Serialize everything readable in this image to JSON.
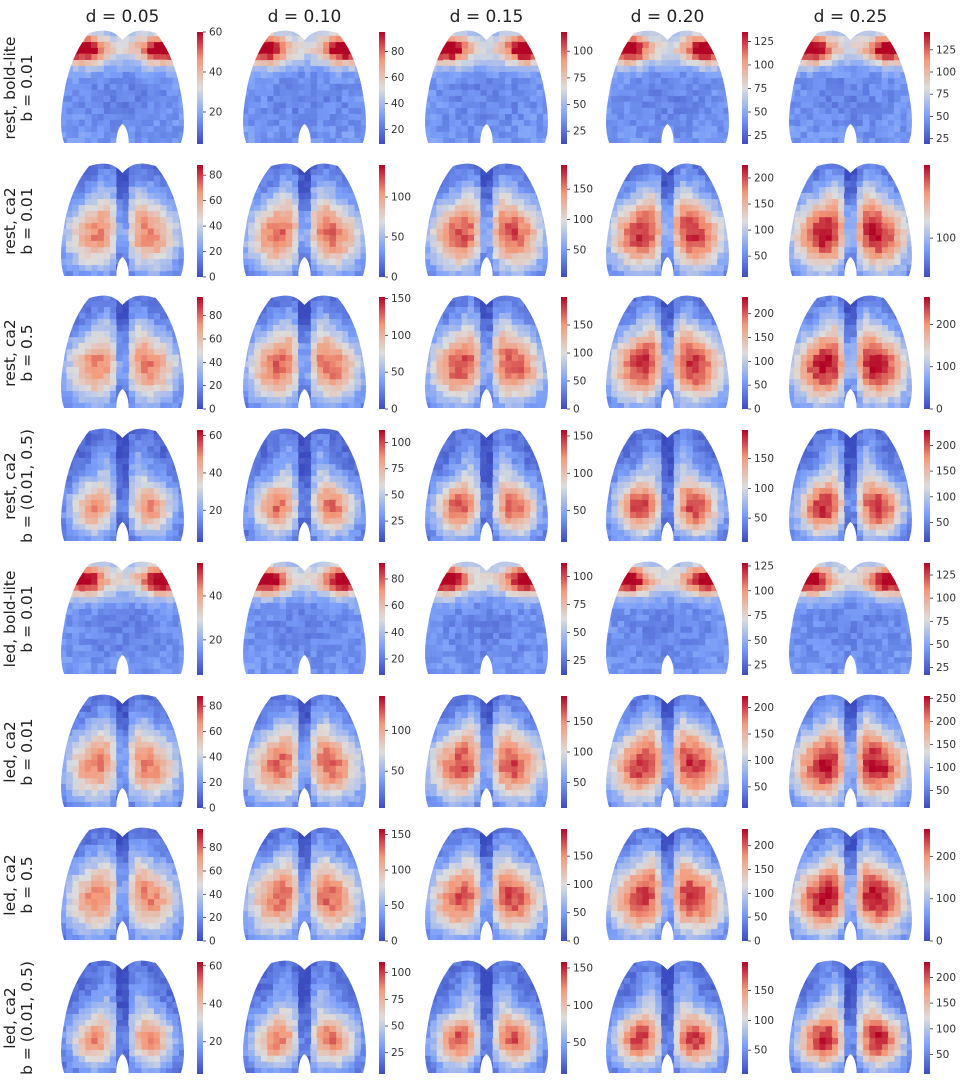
{
  "chart_data": {
    "type": "heatmap",
    "layout": "grid of brain-map heatmaps with individual colorbars",
    "colormap": "coolwarm",
    "column_titles": [
      "d = 0.05",
      "d = 0.10",
      "d = 0.15",
      "d = 0.20",
      "d = 0.25"
    ],
    "rows": [
      {
        "label_line1": "rest, bold-lite",
        "label_line2": "b = 0.01",
        "pattern": "bold",
        "panels": [
          {
            "ticks": [
              "20",
              "40",
              "60"
            ],
            "range": [
              4,
              60
            ]
          },
          {
            "ticks": [
              "20",
              "40",
              "60",
              "80"
            ],
            "range": [
              9,
              95
            ]
          },
          {
            "ticks": [
              "25",
              "50",
              "75",
              "100"
            ],
            "range": [
              13,
              118
            ]
          },
          {
            "ticks": [
              "25",
              "50",
              "75",
              "100",
              "125"
            ],
            "range": [
              16,
              135
            ]
          },
          {
            "ticks": [
              "25",
              "50",
              "75",
              "100",
              "125"
            ],
            "range": [
              19,
              145
            ]
          }
        ]
      },
      {
        "label_line1": "rest, ca2",
        "label_line2": "b = 0.01",
        "pattern": "ca2",
        "panels": [
          {
            "ticks": [
              "0",
              "20",
              "40",
              "60",
              "80"
            ],
            "range": [
              0,
              88
            ]
          },
          {
            "ticks": [
              "0",
              "50",
              "100"
            ],
            "range": [
              0,
              140
            ]
          },
          {
            "ticks": [
              "50",
              "100",
              "150"
            ],
            "range": [
              5,
              190
            ]
          },
          {
            "ticks": [
              "50",
              "100",
              "150",
              "200"
            ],
            "range": [
              10,
              225
            ]
          },
          {
            "ticks": [
              "100"
            ],
            "range": [
              15,
              260
            ]
          }
        ]
      },
      {
        "label_line1": "rest, ca2",
        "label_line2": "b = 0.5",
        "pattern": "ca2",
        "panels": [
          {
            "ticks": [
              "0",
              "20",
              "40",
              "60",
              "80"
            ],
            "range": [
              0,
              96
            ]
          },
          {
            "ticks": [
              "0",
              "50",
              "100",
              "150"
            ],
            "range": [
              0,
              152
            ]
          },
          {
            "ticks": [
              "0",
              "50",
              "100",
              "150"
            ],
            "range": [
              0,
              200
            ]
          },
          {
            "ticks": [
              "0",
              "50",
              "100",
              "150",
              "200"
            ],
            "range": [
              0,
              235
            ]
          },
          {
            "ticks": [
              "0",
              "100",
              "200"
            ],
            "range": [
              0,
              265
            ]
          }
        ]
      },
      {
        "label_line1": "rest, ca2",
        "label_line2": "b = (0.01, 0.5)",
        "pattern": "ca2s",
        "panels": [
          {
            "ticks": [
              "20",
              "40",
              "60"
            ],
            "range": [
              3,
              63
            ]
          },
          {
            "ticks": [
              "25",
              "50",
              "75",
              "100"
            ],
            "range": [
              5,
              112
            ]
          },
          {
            "ticks": [
              "50",
              "100",
              "150"
            ],
            "range": [
              8,
              158
            ]
          },
          {
            "ticks": [
              "50",
              "100",
              "150"
            ],
            "range": [
              10,
              198
            ]
          },
          {
            "ticks": [
              "50",
              "100",
              "150",
              "200"
            ],
            "range": [
              12,
              230
            ]
          }
        ]
      },
      {
        "label_line1": "led, bold-lite",
        "label_line2": "b = 0.01",
        "pattern": "bold",
        "panels": [
          {
            "ticks": [
              "20",
              "40"
            ],
            "range": [
              4,
              55
            ]
          },
          {
            "ticks": [
              "20",
              "40",
              "60",
              "80"
            ],
            "range": [
              8,
              92
            ]
          },
          {
            "ticks": [
              "25",
              "50",
              "75",
              "100"
            ],
            "range": [
              12,
              112
            ]
          },
          {
            "ticks": [
              "25",
              "50",
              "75",
              "100",
              "125"
            ],
            "range": [
              15,
              128
            ]
          },
          {
            "ticks": [
              "25",
              "50",
              "75",
              "100",
              "125"
            ],
            "range": [
              17,
              138
            ]
          }
        ]
      },
      {
        "label_line1": "led, ca2",
        "label_line2": "b = 0.01",
        "pattern": "ca2",
        "panels": [
          {
            "ticks": [
              "0",
              "20",
              "40",
              "60",
              "80"
            ],
            "range": [
              0,
              88
            ]
          },
          {
            "ticks": [
              "50",
              "100"
            ],
            "range": [
              5,
              142
            ]
          },
          {
            "ticks": [
              "50",
              "100",
              "150"
            ],
            "range": [
              8,
              192
            ]
          },
          {
            "ticks": [
              "50",
              "100",
              "150",
              "200"
            ],
            "range": [
              10,
              222
            ]
          },
          {
            "ticks": [
              "50",
              "100",
              "150",
              "200",
              "250"
            ],
            "range": [
              12,
              255
            ]
          }
        ]
      },
      {
        "label_line1": "led, ca2",
        "label_line2": "b = 0.5",
        "pattern": "ca2",
        "panels": [
          {
            "ticks": [
              "0",
              "20",
              "40",
              "60",
              "80"
            ],
            "range": [
              0,
              96
            ]
          },
          {
            "ticks": [
              "0",
              "50",
              "100",
              "150"
            ],
            "range": [
              0,
              158
            ]
          },
          {
            "ticks": [
              "0",
              "50",
              "100",
              "150"
            ],
            "range": [
              0,
              198
            ]
          },
          {
            "ticks": [
              "0",
              "50",
              "100",
              "150",
              "200"
            ],
            "range": [
              0,
              235
            ]
          },
          {
            "ticks": [
              "0",
              "100",
              "200"
            ],
            "range": [
              0,
              265
            ]
          }
        ]
      },
      {
        "label_line1": "led, ca2",
        "label_line2": "b = (0.01, 0.5)",
        "pattern": "ca2s",
        "panels": [
          {
            "ticks": [
              "20",
              "40",
              "60"
            ],
            "range": [
              3,
              62
            ]
          },
          {
            "ticks": [
              "25",
              "50",
              "75",
              "100"
            ],
            "range": [
              5,
              110
            ]
          },
          {
            "ticks": [
              "50",
              "100",
              "150"
            ],
            "range": [
              8,
              158
            ]
          },
          {
            "ticks": [
              "50",
              "100",
              "150"
            ],
            "range": [
              10,
              198
            ]
          },
          {
            "ticks": [
              "50",
              "100",
              "150",
              "200"
            ],
            "range": [
              12,
              230
            ]
          }
        ]
      }
    ]
  }
}
